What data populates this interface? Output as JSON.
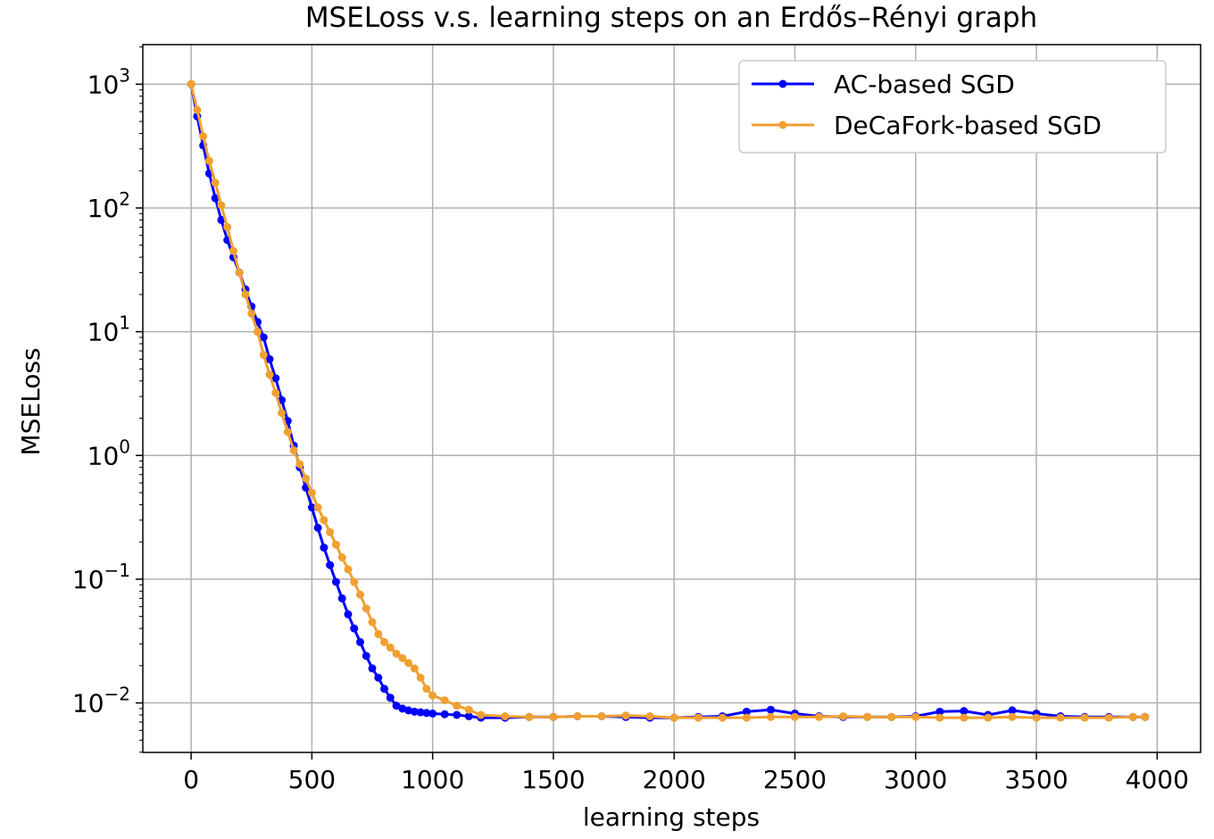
{
  "chart_data": {
    "type": "line",
    "title": "MSELoss v.s. learning steps on an Erdős–Rényi graph",
    "xlabel": "learning steps",
    "ylabel": "MSELoss",
    "xlim": [
      -200,
      4180
    ],
    "ylim_log10": [
      -2.4,
      3.32
    ],
    "yscale": "log",
    "grid": true,
    "legend_position": "top-right",
    "x_ticks": [
      0,
      500,
      1000,
      1500,
      2000,
      2500,
      3000,
      3500,
      4000
    ],
    "x_tick_labels": [
      "0",
      "500",
      "1000",
      "1500",
      "2000",
      "2500",
      "3000",
      "3500",
      "4000"
    ],
    "y_ticks_exp": [
      3,
      2,
      1,
      0,
      -1,
      -2
    ],
    "y_tick_labels": [
      {
        "base": "10",
        "exp": "3"
      },
      {
        "base": "10",
        "exp": "2"
      },
      {
        "base": "10",
        "exp": "1"
      },
      {
        "base": "10",
        "exp": "0"
      },
      {
        "base": "10",
        "exp": "−1"
      },
      {
        "base": "10",
        "exp": "−2"
      }
    ],
    "series": [
      {
        "name": "AC-based SGD",
        "color": "#0000ff",
        "x": [
          0,
          25,
          50,
          75,
          100,
          125,
          150,
          175,
          200,
          225,
          250,
          275,
          300,
          325,
          350,
          375,
          400,
          425,
          450,
          475,
          500,
          525,
          550,
          575,
          600,
          625,
          650,
          675,
          700,
          725,
          750,
          775,
          800,
          825,
          850,
          875,
          900,
          925,
          950,
          975,
          1000,
          1050,
          1100,
          1150,
          1200,
          1300,
          1400,
          1500,
          1600,
          1700,
          1800,
          1900,
          2000,
          2100,
          2200,
          2300,
          2400,
          2500,
          2600,
          2700,
          2800,
          2900,
          3000,
          3100,
          3200,
          3300,
          3400,
          3500,
          3600,
          3700,
          3800,
          3900,
          3950
        ],
        "y": [
          1000,
          550,
          320,
          190,
          120,
          80,
          55,
          40,
          30,
          22,
          16,
          12,
          9,
          6,
          4.2,
          2.8,
          1.9,
          1.2,
          0.8,
          0.55,
          0.38,
          0.26,
          0.18,
          0.13,
          0.095,
          0.07,
          0.052,
          0.04,
          0.031,
          0.024,
          0.019,
          0.016,
          0.013,
          0.011,
          0.0095,
          0.009,
          0.0087,
          0.0085,
          0.0084,
          0.0083,
          0.0082,
          0.0081,
          0.008,
          0.0078,
          0.0076,
          0.0076,
          0.0077,
          0.0077,
          0.0078,
          0.0078,
          0.0077,
          0.0076,
          0.0076,
          0.0077,
          0.0078,
          0.0085,
          0.0088,
          0.0082,
          0.0078,
          0.0077,
          0.0077,
          0.0077,
          0.0078,
          0.0085,
          0.0086,
          0.008,
          0.0087,
          0.0082,
          0.0078,
          0.0077,
          0.0077,
          0.0077,
          0.0077
        ]
      },
      {
        "name": "DeCaFork-based SGD",
        "color": "#f0a030",
        "x": [
          0,
          25,
          50,
          75,
          100,
          125,
          150,
          175,
          200,
          225,
          250,
          275,
          300,
          325,
          350,
          375,
          400,
          425,
          450,
          475,
          500,
          525,
          550,
          575,
          600,
          625,
          650,
          675,
          700,
          725,
          750,
          775,
          800,
          825,
          850,
          875,
          900,
          925,
          950,
          975,
          1000,
          1050,
          1100,
          1150,
          1200,
          1300,
          1400,
          1500,
          1600,
          1700,
          1800,
          1900,
          2000,
          2100,
          2200,
          2300,
          2400,
          2500,
          2600,
          2700,
          2800,
          2900,
          3000,
          3100,
          3200,
          3300,
          3400,
          3500,
          3600,
          3700,
          3800,
          3900,
          3950
        ],
        "y": [
          1000,
          620,
          380,
          240,
          160,
          105,
          70,
          45,
          30,
          20,
          14,
          10,
          6.5,
          4.5,
          3.2,
          2.2,
          1.55,
          1.1,
          0.85,
          0.65,
          0.5,
          0.38,
          0.3,
          0.24,
          0.19,
          0.15,
          0.12,
          0.095,
          0.075,
          0.058,
          0.045,
          0.036,
          0.031,
          0.028,
          0.025,
          0.023,
          0.021,
          0.019,
          0.016,
          0.013,
          0.0115,
          0.0105,
          0.0095,
          0.0088,
          0.008,
          0.0078,
          0.0077,
          0.0077,
          0.0078,
          0.0078,
          0.0079,
          0.0078,
          0.0076,
          0.0076,
          0.0076,
          0.0076,
          0.0077,
          0.0077,
          0.0077,
          0.0078,
          0.0077,
          0.0077,
          0.0077,
          0.0076,
          0.0076,
          0.0076,
          0.0077,
          0.0076,
          0.0076,
          0.0076,
          0.0076,
          0.0077,
          0.0077
        ]
      }
    ]
  }
}
